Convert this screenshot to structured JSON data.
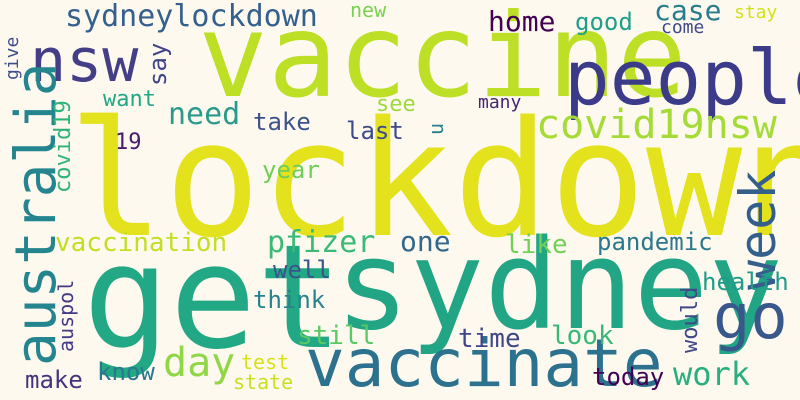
{
  "background": "#fdf9ef",
  "words": [
    {
      "text": "lockdown",
      "color": "#e3e21c"
    },
    {
      "text": "vaccine",
      "color": "#bddf26"
    },
    {
      "text": "get",
      "color": "#22a884"
    },
    {
      "text": "sydney",
      "color": "#21a585"
    },
    {
      "text": "people",
      "color": "#3b3b8a"
    },
    {
      "text": "nsw",
      "color": "#433e85"
    },
    {
      "text": "vaccinate",
      "color": "#2c728e"
    },
    {
      "text": "go",
      "color": "#38588c"
    },
    {
      "text": "australia",
      "color": "#25858e"
    },
    {
      "text": "week",
      "color": "#345f8d"
    },
    {
      "text": "covid19nsw",
      "color": "#a5db36"
    },
    {
      "text": "sydneylockdown",
      "color": "#35608d"
    },
    {
      "text": "day",
      "color": "#8fd744"
    },
    {
      "text": "work",
      "color": "#29af7f"
    },
    {
      "text": "pfizer",
      "color": "#3aba76"
    },
    {
      "text": "vaccination",
      "color": "#c2df23"
    },
    {
      "text": "home",
      "color": "#440154"
    },
    {
      "text": "need",
      "color": "#2a9a8a"
    },
    {
      "text": "case",
      "color": "#287c8e"
    },
    {
      "text": "one",
      "color": "#31688e"
    },
    {
      "text": "good",
      "color": "#1f9e89"
    },
    {
      "text": "pandemic",
      "color": "#2a788e"
    },
    {
      "text": "like",
      "color": "#73d056"
    },
    {
      "text": "take",
      "color": "#3b528b"
    },
    {
      "text": "time",
      "color": "#3f4788"
    },
    {
      "text": "still",
      "color": "#5ac864"
    },
    {
      "text": "think",
      "color": "#26828e"
    },
    {
      "text": "well",
      "color": "#39558c"
    },
    {
      "text": "make",
      "color": "#46327e"
    },
    {
      "text": "know",
      "color": "#2a788e"
    },
    {
      "text": "today",
      "color": "#440154"
    },
    {
      "text": "look",
      "color": "#38b977"
    },
    {
      "text": "health",
      "color": "#1e9c89"
    },
    {
      "text": "would",
      "color": "#3f4889"
    },
    {
      "text": "last",
      "color": "#3e4a89"
    },
    {
      "text": "year",
      "color": "#6ece58"
    },
    {
      "text": "see",
      "color": "#9bd93c"
    },
    {
      "text": "want",
      "color": "#22a785"
    },
    {
      "text": "say",
      "color": "#404387"
    },
    {
      "text": "covid19",
      "color": "#2eb37c"
    },
    {
      "text": "auspol",
      "color": "#443b84"
    },
    {
      "text": "give",
      "color": "#3e4c8a"
    },
    {
      "text": "19",
      "color": "#481b6d"
    },
    {
      "text": "many",
      "color": "#482475"
    },
    {
      "text": "u",
      "color": "#27808e"
    },
    {
      "text": "new",
      "color": "#7ad151"
    },
    {
      "text": "come",
      "color": "#3e4a89"
    },
    {
      "text": "stay",
      "color": "#d2e21b"
    },
    {
      "text": "test",
      "color": "#d8e219"
    },
    {
      "text": "state",
      "color": "#c8e020"
    }
  ]
}
